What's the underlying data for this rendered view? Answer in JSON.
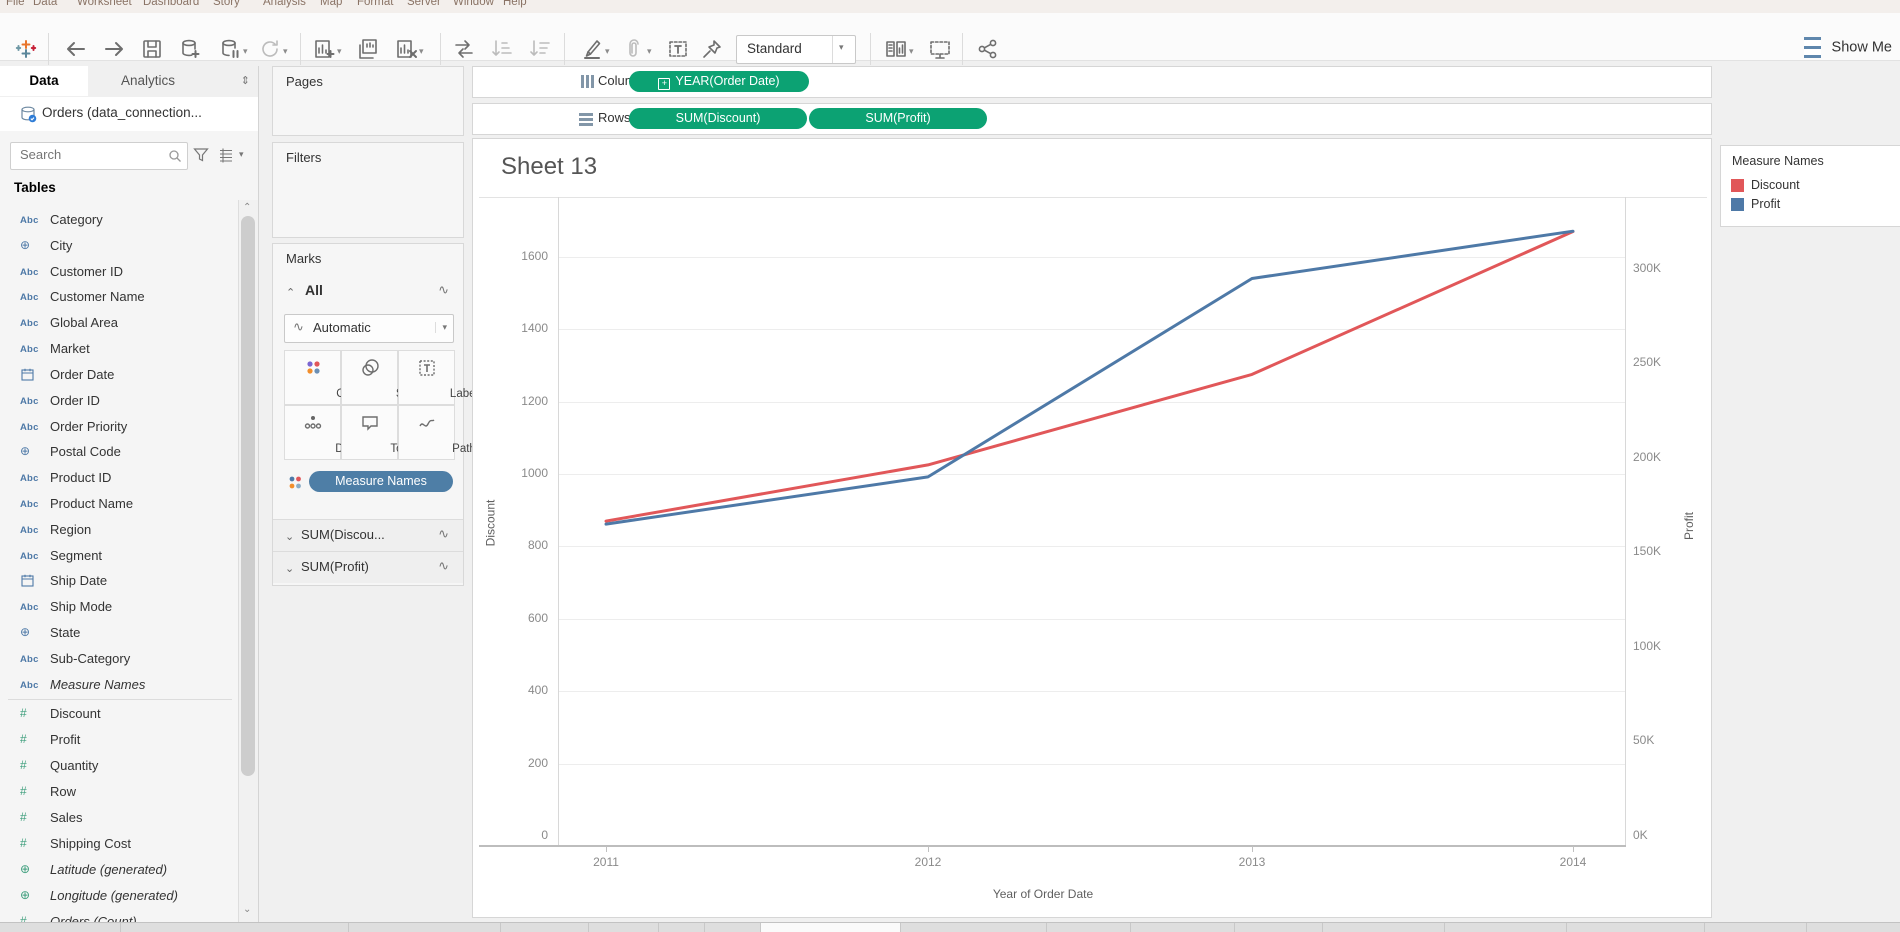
{
  "menu": {
    "items": [
      "File",
      "Data",
      "Worksheet",
      "Dashboard",
      "Story",
      "Analysis",
      "Map",
      "Format",
      "Server",
      "Window",
      "Help"
    ]
  },
  "toolbar": {
    "view_mode": "Standard",
    "show_me_label": "Show Me"
  },
  "sidebar": {
    "tabs": {
      "data": "Data",
      "analytics": "Analytics"
    },
    "datasource": "Orders (data_connection...",
    "search_placeholder": "Search",
    "tables_header": "Tables",
    "field_type_icons": {
      "abc": "Abc",
      "number": "#",
      "globe": "⊕"
    },
    "fields": [
      {
        "label": "Category",
        "type": "string"
      },
      {
        "label": "City",
        "type": "geo"
      },
      {
        "label": "Customer ID",
        "type": "string"
      },
      {
        "label": "Customer Name",
        "type": "string"
      },
      {
        "label": "Global Area",
        "type": "string"
      },
      {
        "label": "Market",
        "type": "string"
      },
      {
        "label": "Order Date",
        "type": "date"
      },
      {
        "label": "Order ID",
        "type": "string"
      },
      {
        "label": "Order Priority",
        "type": "string"
      },
      {
        "label": "Postal Code",
        "type": "geo"
      },
      {
        "label": "Product ID",
        "type": "string"
      },
      {
        "label": "Product Name",
        "type": "string"
      },
      {
        "label": "Region",
        "type": "string"
      },
      {
        "label": "Segment",
        "type": "string"
      },
      {
        "label": "Ship Date",
        "type": "date"
      },
      {
        "label": "Ship Mode",
        "type": "string"
      },
      {
        "label": "State",
        "type": "geo"
      },
      {
        "label": "Sub-Category",
        "type": "string"
      },
      {
        "label": "Measure Names",
        "type": "string-italic"
      },
      {
        "label": "Discount",
        "type": "measure"
      },
      {
        "label": "Profit",
        "type": "measure"
      },
      {
        "label": "Quantity",
        "type": "measure"
      },
      {
        "label": "Row",
        "type": "measure"
      },
      {
        "label": "Sales",
        "type": "measure"
      },
      {
        "label": "Shipping Cost",
        "type": "measure"
      },
      {
        "label": "Latitude (generated)",
        "type": "geo-measure-italic"
      },
      {
        "label": "Longitude (generated)",
        "type": "geo-measure-italic"
      },
      {
        "label": "Orders (Count)",
        "type": "measure-italic"
      }
    ]
  },
  "cards": {
    "pages_label": "Pages",
    "filters_label": "Filters",
    "marks": {
      "header": "Marks",
      "all_label": "All",
      "mark_type": "Automatic",
      "buttons": [
        "Color",
        "Size",
        "Label",
        "Detail",
        "Tooltip",
        "Path"
      ],
      "color_pill": "Measure Names",
      "sub_cards": [
        "SUM(Discou...",
        "SUM(Profit)"
      ]
    }
  },
  "shelves": {
    "columns_label": "Columns",
    "rows_label": "Rows",
    "columns_pills": [
      "YEAR(Order Date)"
    ],
    "rows_pills": [
      "SUM(Discount)",
      "SUM(Profit)"
    ]
  },
  "sheet": {
    "title": "Sheet 13"
  },
  "axes": {
    "left_title": "Discount",
    "right_title": "Profit",
    "x_title": "Year of Order Date",
    "left_ticks": [
      "1600",
      "1400",
      "1200",
      "1000",
      "800",
      "600",
      "400",
      "200",
      "0"
    ],
    "right_ticks": [
      "300K",
      "250K",
      "200K",
      "150K",
      "100K",
      "50K",
      "0K"
    ],
    "x_ticks": [
      "2011",
      "2012",
      "2013",
      "2014"
    ]
  },
  "legend": {
    "title": "Measure Names",
    "entries": [
      {
        "label": "Discount",
        "color": "#e15759"
      },
      {
        "label": "Profit",
        "color": "#4e79a7"
      }
    ]
  },
  "chart_data": {
    "type": "line",
    "title": "Sheet 13",
    "categories": [
      "2011",
      "2012",
      "2013",
      "2014"
    ],
    "xlabel": "Year of Order Date",
    "series": [
      {
        "name": "Discount",
        "axis": "left",
        "color": "#e15759",
        "values": [
          870,
          1025,
          1275,
          1670
        ]
      },
      {
        "name": "Profit",
        "axis": "right",
        "color": "#4e79a7",
        "values": [
          165000,
          190000,
          295000,
          320000
        ]
      }
    ],
    "left_axis": {
      "label": "Discount",
      "min": 0,
      "max": 1754,
      "tick_step": 200
    },
    "right_axis": {
      "label": "Profit",
      "min": 0,
      "max": 336000,
      "tick_step": 50000
    },
    "grid": "horizontal",
    "legend_position": "right"
  }
}
